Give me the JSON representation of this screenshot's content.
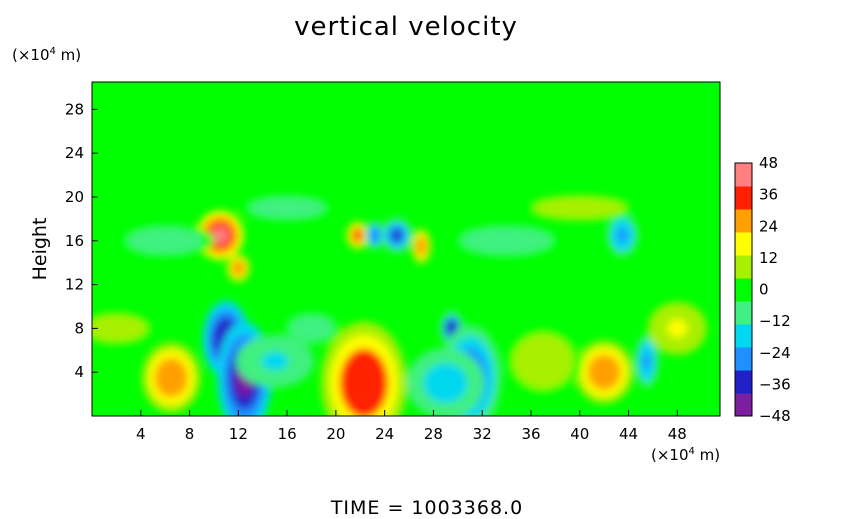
{
  "chart_data": {
    "type": "heatmap",
    "title": "vertical velocity",
    "xlabel": "",
    "ylabel": "Height",
    "x_unit_prefix": "(×10",
    "x_unit_exp": "4",
    "x_unit_suffix": " m)",
    "y_unit_prefix": "(×10",
    "y_unit_exp": "4",
    "y_unit_suffix": " m)",
    "xlim": [
      0,
      51.5
    ],
    "ylim": [
      0,
      30.5
    ],
    "x_ticks": [
      4,
      8,
      12,
      16,
      20,
      24,
      28,
      32,
      36,
      40,
      44,
      48
    ],
    "y_ticks": [
      4,
      8,
      12,
      16,
      20,
      24,
      28
    ],
    "colorbar": {
      "min": -48,
      "max": 48,
      "ticks": [
        48,
        36,
        24,
        12,
        0,
        -12,
        -24,
        -36,
        -48
      ],
      "colors": [
        "#7a1fa0",
        "#2020c8",
        "#1e90ff",
        "#00d8f0",
        "#40f080",
        "#00ff00",
        "#a8f000",
        "#ffff00",
        "#ffa000",
        "#ff2000",
        "#ff8080"
      ]
    },
    "background_value": 0,
    "features": [
      {
        "x": 6.5,
        "y": 3.5,
        "w": 1.5,
        "h": 2.0,
        "value": 30
      },
      {
        "x": 10.5,
        "y": 16.5,
        "w": 1.2,
        "h": 1.4,
        "value": 44
      },
      {
        "x": 12.0,
        "y": 13.5,
        "w": 0.6,
        "h": 0.8,
        "value": 26
      },
      {
        "x": 11.0,
        "y": 7.0,
        "w": 1.2,
        "h": 2.2,
        "value": -38
      },
      {
        "x": 12.5,
        "y": 3.5,
        "w": 1.4,
        "h": 3.2,
        "value": -40
      },
      {
        "x": 22.3,
        "y": 3.0,
        "w": 2.2,
        "h": 3.5,
        "value": 36
      },
      {
        "x": 21.8,
        "y": 16.5,
        "w": 0.6,
        "h": 0.8,
        "value": 32
      },
      {
        "x": 23.2,
        "y": 16.5,
        "w": 0.5,
        "h": 0.8,
        "value": -30
      },
      {
        "x": 25.0,
        "y": 16.5,
        "w": 0.8,
        "h": 1.0,
        "value": -34
      },
      {
        "x": 27.0,
        "y": 15.5,
        "w": 0.5,
        "h": 1.0,
        "value": 30
      },
      {
        "x": 29.5,
        "y": 8.0,
        "w": 0.6,
        "h": 1.0,
        "value": -36
      },
      {
        "x": 31.0,
        "y": 3.5,
        "w": 1.6,
        "h": 3.0,
        "value": -32
      },
      {
        "x": 29.0,
        "y": 3.0,
        "w": 2.0,
        "h": 2.0,
        "value": -18
      },
      {
        "x": 42.0,
        "y": 4.0,
        "w": 1.5,
        "h": 1.8,
        "value": 28
      },
      {
        "x": 45.5,
        "y": 5.0,
        "w": 0.6,
        "h": 1.5,
        "value": -22
      },
      {
        "x": 43.5,
        "y": 16.5,
        "w": 0.8,
        "h": 1.2,
        "value": -24
      },
      {
        "x": 2.0,
        "y": 8.0,
        "w": 2.0,
        "h": 1.0,
        "value": 12
      },
      {
        "x": 18.0,
        "y": 8.0,
        "w": 1.5,
        "h": 1.0,
        "value": -10
      },
      {
        "x": 37.0,
        "y": 5.0,
        "w": 2.0,
        "h": 2.0,
        "value": 10
      },
      {
        "x": 15.0,
        "y": 5.0,
        "w": 2.0,
        "h": 1.5,
        "value": -14
      },
      {
        "x": 6.0,
        "y": 16.0,
        "w": 2.5,
        "h": 1.0,
        "value": -8
      },
      {
        "x": 34.0,
        "y": 16.0,
        "w": 3.0,
        "h": 1.0,
        "value": -10
      },
      {
        "x": 48.0,
        "y": 8.0,
        "w": 1.5,
        "h": 1.5,
        "value": 14
      },
      {
        "x": 40.0,
        "y": 19.0,
        "w": 3.0,
        "h": 0.8,
        "value": 8
      },
      {
        "x": 16.0,
        "y": 19.0,
        "w": 2.5,
        "h": 0.8,
        "value": -8
      }
    ]
  },
  "footer": {
    "time_label": "TIME  =  1003368.0"
  }
}
